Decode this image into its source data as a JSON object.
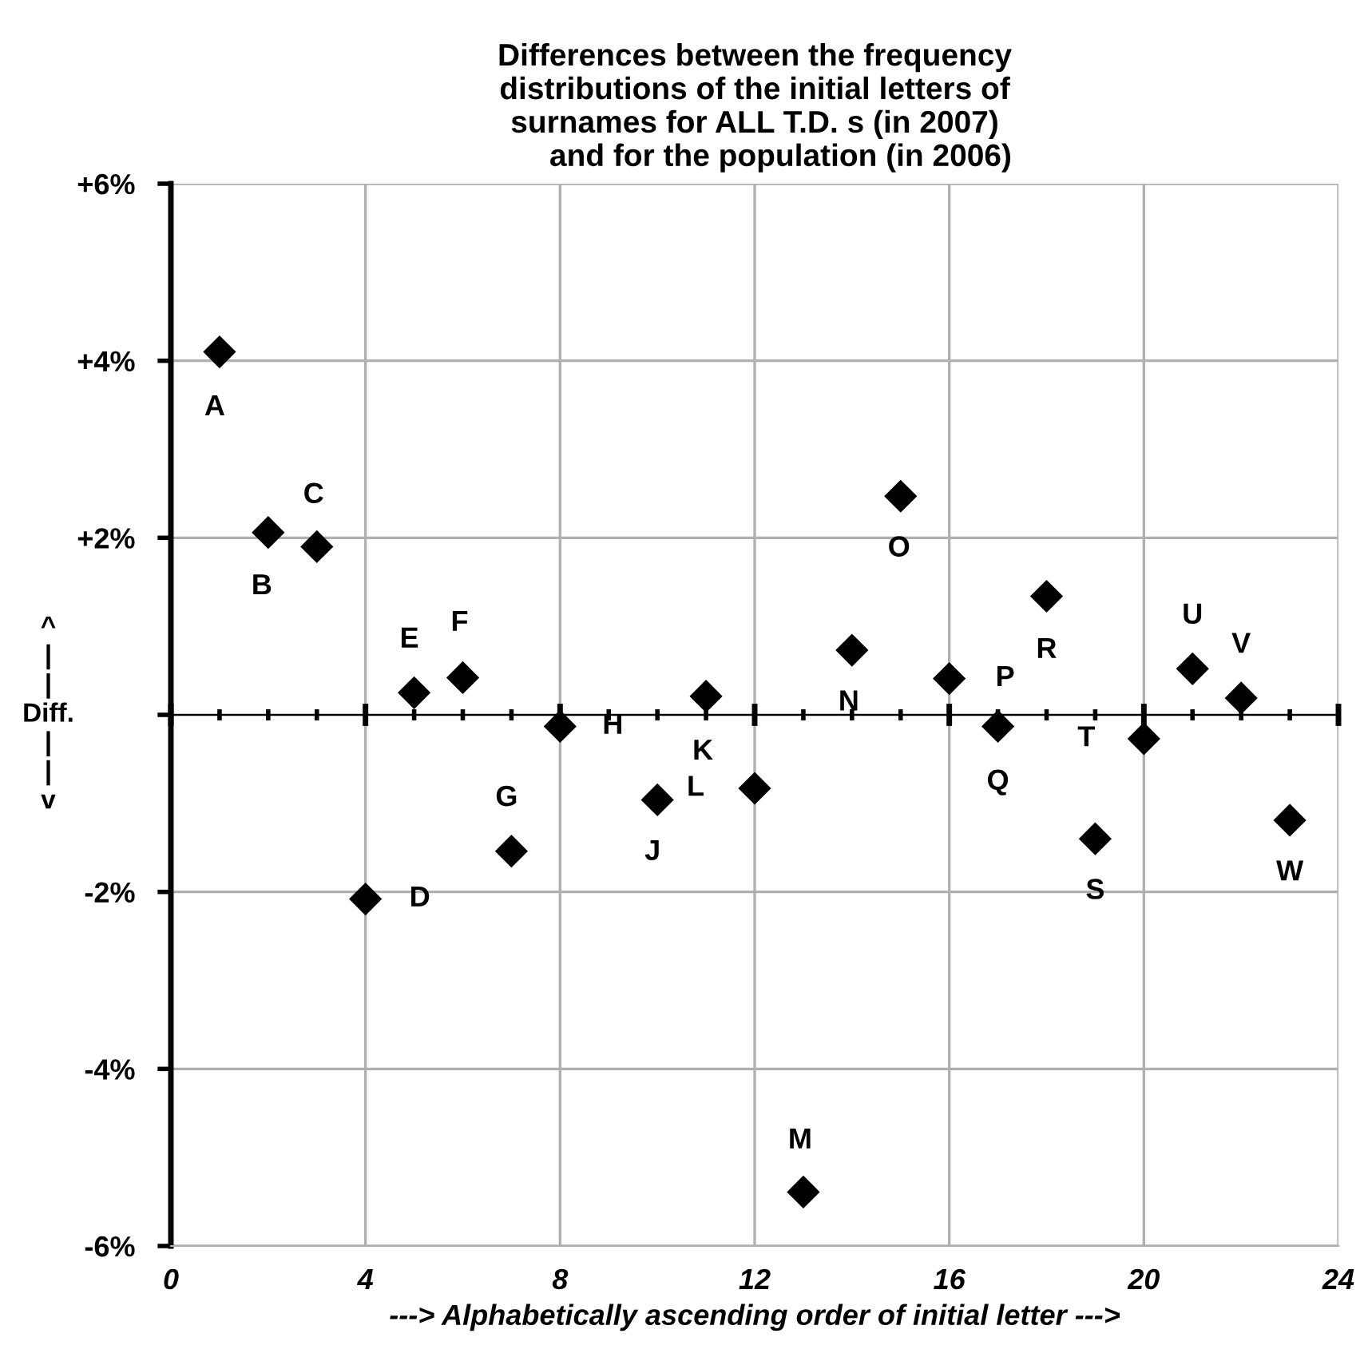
{
  "chart_data": {
    "type": "scatter",
    "title": "Differences between the frequency\ndistributions of the initial letters of\nsurnames for ALL T.D. s (in 2007)\n      and for the population (in 2006)",
    "xlabel": "---> Alphabetically ascending order of initial letter --->",
    "ylabel": "^\n|\n|\nDiff.\n|\n|\nv",
    "x": [
      1,
      2,
      3,
      4,
      5,
      6,
      7,
      8,
      10,
      11,
      12,
      13,
      14,
      15,
      16,
      17,
      18,
      19,
      20,
      21,
      22,
      23
    ],
    "series": [
      {
        "color": "#000000",
        "values": [
          4.1,
          2.06,
          1.9,
          -2.08,
          0.25,
          0.42,
          -1.54,
          -0.13,
          -0.96,
          0.21,
          -0.83,
          -5.39,
          0.73,
          2.47,
          0.41,
          -0.13,
          1.34,
          -1.4,
          -0.27,
          0.52,
          0.19,
          -1.19
        ]
      }
    ],
    "marker": "diamond",
    "annotations": [
      {
        "text": "A",
        "x": 1,
        "y": 4.1
      },
      {
        "text": "B",
        "x": 2,
        "y": 2.06
      },
      {
        "text": "C",
        "x": 3,
        "y": 1.9
      },
      {
        "text": "D",
        "x": 4,
        "y": -2.08
      },
      {
        "text": "E",
        "x": 5,
        "y": 0.25
      },
      {
        "text": "F",
        "x": 6,
        "y": 0.42
      },
      {
        "text": "G",
        "x": 7,
        "y": -1.54
      },
      {
        "text": "H",
        "x": 8,
        "y": -0.13
      },
      {
        "text": "J",
        "x": 10,
        "y": -0.96
      },
      {
        "text": "K",
        "x": 11,
        "y": 0.21
      },
      {
        "text": "L",
        "x": 12,
        "y": -0.83
      },
      {
        "text": "M",
        "x": 13,
        "y": -5.39
      },
      {
        "text": "N",
        "x": 14,
        "y": 0.73
      },
      {
        "text": "O",
        "x": 15,
        "y": 2.47
      },
      {
        "text": "P",
        "x": 16,
        "y": 0.41
      },
      {
        "text": "Q",
        "x": 17,
        "y": -0.13
      },
      {
        "text": "R",
        "x": 18,
        "y": 1.34
      },
      {
        "text": "S",
        "x": 19,
        "y": -1.4
      },
      {
        "text": "T",
        "x": 20,
        "y": -0.27
      },
      {
        "text": "U",
        "x": 21,
        "y": 0.52
      },
      {
        "text": "V",
        "x": 22,
        "y": 0.19
      },
      {
        "text": "W",
        "x": 23,
        "y": -1.19
      }
    ],
    "xlim": [
      0,
      24
    ],
    "xticks": [
      0,
      4,
      8,
      12,
      16,
      20,
      24
    ],
    "ylim": [
      -6,
      6
    ],
    "yticks": [
      {
        "value": -6,
        "label": "-6%"
      },
      {
        "value": -4,
        "label": "-4%"
      },
      {
        "value": -2,
        "label": "-2%"
      },
      {
        "value": 0,
        "label": null
      },
      {
        "value": 2,
        "label": "+2%"
      },
      {
        "value": 4,
        "label": "+4%"
      },
      {
        "value": 6,
        "label": "+6%"
      }
    ],
    "grid": true,
    "legend": false
  }
}
